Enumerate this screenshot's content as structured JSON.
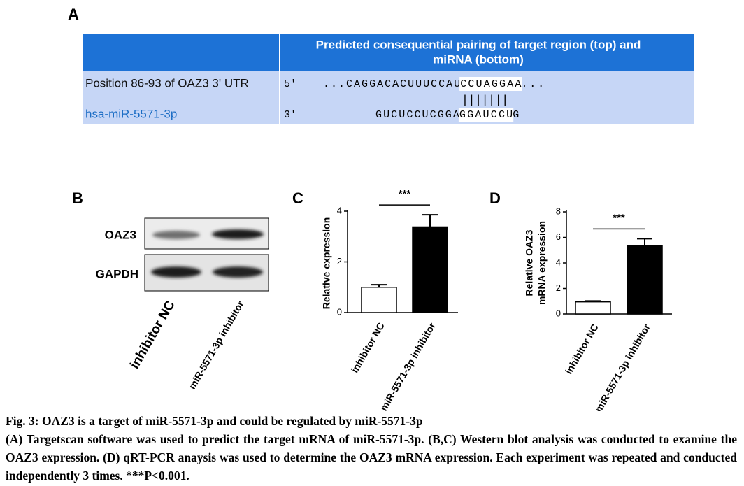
{
  "panel_labels": [
    "A",
    "B",
    "C",
    "D"
  ],
  "table": {
    "header_lines": [
      "Predicted consequential pairing of target region (top) and",
      "miRNA (bottom)"
    ],
    "rows": [
      {
        "label": "Position 86-93 of OAZ3 3' UTR",
        "end": "5'",
        "sequence": [
          "...CAGGACACUUUCCAU",
          "CCUAGGAA",
          "..."
        ]
      },
      {
        "label": "hsa-miR-5571-3p",
        "end": "3'",
        "sequence": [
          "GUCUCCUCGGA",
          "GGAUCCU",
          "G"
        ]
      }
    ],
    "pairing": "|||||||"
  },
  "blot": {
    "bands": [
      "OAZ3",
      "GAPDH"
    ],
    "lanes": [
      "inhibitor NC",
      "miR-5571-3p inhibitor"
    ]
  },
  "chart_data": [
    {
      "type": "bar",
      "ylabel": "Relative  expression",
      "categories": [
        "inhibitor NC",
        "miR-5571-3p inhibitor"
      ],
      "values": [
        1.0,
        3.38
      ],
      "errors": [
        0.1,
        0.48
      ],
      "colors": [
        "#ffffff",
        "#000000"
      ],
      "ylim": [
        0,
        4
      ],
      "yticks": [
        0,
        2,
        4
      ],
      "annotation": "***"
    },
    {
      "type": "bar",
      "ylabel": [
        "Relative  OAZ3",
        "mRNA expression"
      ],
      "categories": [
        "inhibitor NC",
        "miR-5571-3p inhibitor"
      ],
      "values": [
        0.95,
        5.35
      ],
      "errors": [
        0.07,
        0.55
      ],
      "colors": [
        "#ffffff",
        "#000000"
      ],
      "ylim": [
        0,
        8
      ],
      "yticks": [
        0,
        2,
        4,
        6,
        8
      ],
      "annotation": "***"
    }
  ],
  "caption": {
    "title": "Fig. 3: OAZ3 is a target of miR-5571-3p and could be regulated by miR-5571-3p",
    "text": "(A) Targetscan software was used to predict the target mRNA of miR-5571-3p. (B,C) Western blot analysis was conducted to examine the OAZ3 expression. (D) qRT-PCR anaysis was used to determine the OAZ3 mRNA expression. Each experiment was repeated and conducted independently 3 times. ***P<0.001."
  }
}
